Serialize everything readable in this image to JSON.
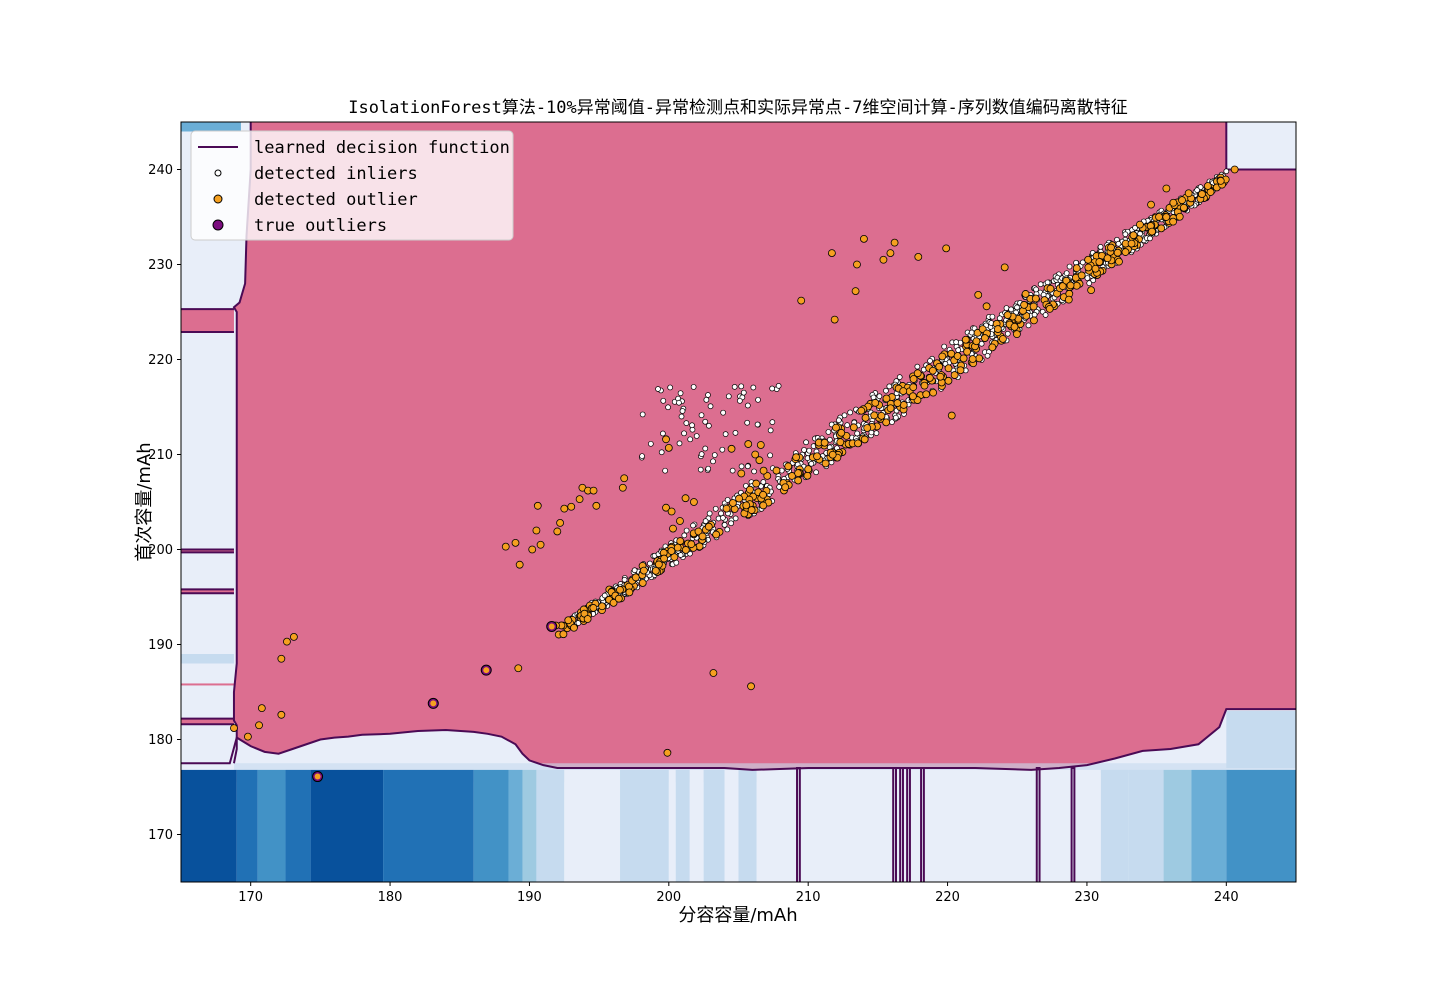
{
  "chart_data": {
    "type": "scatter",
    "title": "IsolationForest算法-10%异常阈值-异常检测点和实际异常点-7维空间计算-序列数值编码离散特征",
    "xlabel": "分容容量/mAh",
    "ylabel": "首次容量/mAh",
    "xlim": [
      165,
      245
    ],
    "ylim": [
      165,
      245
    ],
    "x_ticks": [
      170,
      180,
      190,
      200,
      210,
      220,
      230,
      240
    ],
    "y_ticks": [
      170,
      180,
      190,
      200,
      210,
      220,
      230,
      240
    ],
    "legend_position": "top-left",
    "legend": [
      {
        "name": "learned decision function",
        "marker": "line"
      },
      {
        "name": "detected inliers",
        "marker": "white-dot"
      },
      {
        "name": "detected outlier",
        "marker": "orange-dot"
      },
      {
        "name": "true outliers",
        "marker": "purple-dot"
      }
    ],
    "colors": {
      "inlier_region": "#dc6e90",
      "outlier_shades": [
        "#e8eef9",
        "#c6dbef",
        "#9ecae1",
        "#6baed6",
        "#4292c6",
        "#2171b5",
        "#08519c"
      ],
      "decision_line": "#4b0a55",
      "inlier_marker": "#ffffff",
      "outlier_marker": "#f5a020",
      "true_outlier_marker": "#7b0d7f"
    },
    "boundary_bottom": [
      [
        165,
        177.5
      ],
      [
        168.5,
        177.5
      ],
      [
        169,
        180.2
      ],
      [
        170,
        179.3
      ],
      [
        171,
        178.7
      ],
      [
        172,
        178.5
      ],
      [
        173,
        179
      ],
      [
        174,
        179.5
      ],
      [
        175,
        180
      ],
      [
        176,
        180.2
      ],
      [
        177,
        180.3
      ],
      [
        178,
        180.5
      ],
      [
        180,
        180.6
      ],
      [
        182,
        180.9
      ],
      [
        184,
        181.0
      ],
      [
        186,
        180.8
      ],
      [
        187,
        180.6
      ],
      [
        188,
        180.3
      ],
      [
        189,
        179.5
      ],
      [
        189.5,
        178.5
      ],
      [
        190,
        177.8
      ],
      [
        191,
        177.3
      ],
      [
        192,
        177.0
      ],
      [
        195,
        177.0
      ],
      [
        200,
        177.0
      ],
      [
        204,
        177.0
      ],
      [
        206,
        176.8
      ],
      [
        210,
        177.0
      ],
      [
        215,
        177.0
      ],
      [
        218,
        177.0
      ],
      [
        222,
        177.0
      ],
      [
        226,
        176.8
      ],
      [
        228,
        177.0
      ],
      [
        230,
        177.3
      ],
      [
        232,
        178.0
      ],
      [
        234,
        178.8
      ],
      [
        236,
        179.0
      ],
      [
        238,
        179.5
      ],
      [
        239.5,
        181.3
      ],
      [
        240,
        183.2
      ],
      [
        245,
        183.2
      ]
    ],
    "boundary_left": [
      [
        168.8,
        177.5
      ],
      [
        169,
        179
      ],
      [
        169,
        181.5
      ],
      [
        168.8,
        182
      ],
      [
        168.8,
        185
      ],
      [
        169,
        188
      ],
      [
        169,
        195
      ],
      [
        169,
        196
      ],
      [
        169,
        199.5
      ],
      [
        169,
        210
      ],
      [
        169,
        219
      ],
      [
        169,
        225
      ],
      [
        168.8,
        225.5
      ],
      [
        169.2,
        226
      ],
      [
        169.6,
        228
      ],
      [
        169.7,
        233
      ],
      [
        170,
        240
      ],
      [
        170,
        245
      ]
    ],
    "boundary_topright": [
      [
        240,
        245
      ],
      [
        240,
        240
      ],
      [
        245,
        240
      ]
    ],
    "boundary_spikes": [
      209.3,
      216.2,
      216.7,
      217.2,
      218.2,
      226.5,
      229.0
    ],
    "inlier_band": [
      {
        "x": 193,
        "y": 193
      },
      {
        "x": 196,
        "y": 196
      },
      {
        "x": 200,
        "y": 199
      },
      {
        "x": 205,
        "y": 205
      },
      {
        "x": 210,
        "y": 209
      },
      {
        "x": 215,
        "y": 214
      },
      {
        "x": 220,
        "y": 219
      },
      {
        "x": 225,
        "y": 224
      },
      {
        "x": 230,
        "y": 229
      },
      {
        "x": 235,
        "y": 235
      },
      {
        "x": 240,
        "y": 240
      }
    ],
    "detected_outlier_points": [
      {
        "x": 168.8,
        "y": 181.2
      },
      {
        "x": 169.8,
        "y": 180.3
      },
      {
        "x": 170.6,
        "y": 181.5
      },
      {
        "x": 170.8,
        "y": 183.3
      },
      {
        "x": 172.2,
        "y": 182.6
      },
      {
        "x": 172.2,
        "y": 188.5
      },
      {
        "x": 172.6,
        "y": 190.3
      },
      {
        "x": 173.1,
        "y": 190.8
      },
      {
        "x": 174.8,
        "y": 176.1
      },
      {
        "x": 183.1,
        "y": 183.8
      },
      {
        "x": 186.9,
        "y": 187.3
      },
      {
        "x": 188.3,
        "y": 200.3
      },
      {
        "x": 189.0,
        "y": 200.7
      },
      {
        "x": 189.2,
        "y": 187.5
      },
      {
        "x": 189.3,
        "y": 198.4
      },
      {
        "x": 190.2,
        "y": 200.0
      },
      {
        "x": 190.5,
        "y": 202.0
      },
      {
        "x": 190.6,
        "y": 204.6
      },
      {
        "x": 190.8,
        "y": 200.5
      },
      {
        "x": 191.9,
        "y": 192.0
      },
      {
        "x": 192.0,
        "y": 201.9
      },
      {
        "x": 192.2,
        "y": 202.8
      },
      {
        "x": 192.5,
        "y": 204.3
      },
      {
        "x": 193.0,
        "y": 204.5
      },
      {
        "x": 193.6,
        "y": 205.3
      },
      {
        "x": 193.8,
        "y": 206.5
      },
      {
        "x": 194.2,
        "y": 206.2
      },
      {
        "x": 194.6,
        "y": 206.2
      },
      {
        "x": 194.8,
        "y": 204.6
      },
      {
        "x": 196.8,
        "y": 207.5
      },
      {
        "x": 196.7,
        "y": 206.5
      },
      {
        "x": 199.8,
        "y": 211.6
      },
      {
        "x": 200.0,
        "y": 210.7
      },
      {
        "x": 199.8,
        "y": 204.4
      },
      {
        "x": 200.2,
        "y": 204.0
      },
      {
        "x": 200.8,
        "y": 203.0
      },
      {
        "x": 201.2,
        "y": 205.4
      },
      {
        "x": 201.8,
        "y": 205.0
      },
      {
        "x": 200.3,
        "y": 202.2
      },
      {
        "x": 203.2,
        "y": 187.0
      },
      {
        "x": 204.5,
        "y": 210.6
      },
      {
        "x": 205.2,
        "y": 208.0
      },
      {
        "x": 205.7,
        "y": 211.1
      },
      {
        "x": 206.2,
        "y": 210.0
      },
      {
        "x": 206.5,
        "y": 209.4
      },
      {
        "x": 206.6,
        "y": 211.0
      },
      {
        "x": 206.8,
        "y": 208.3
      },
      {
        "x": 205.9,
        "y": 185.6
      },
      {
        "x": 199.9,
        "y": 178.6
      },
      {
        "x": 209.5,
        "y": 226.2
      },
      {
        "x": 211.7,
        "y": 231.2
      },
      {
        "x": 211.9,
        "y": 224.2
      },
      {
        "x": 213.4,
        "y": 227.2
      },
      {
        "x": 213.5,
        "y": 230.0
      },
      {
        "x": 214.0,
        "y": 232.7
      },
      {
        "x": 215.4,
        "y": 230.5
      },
      {
        "x": 215.9,
        "y": 231.2
      },
      {
        "x": 216.2,
        "y": 232.3
      },
      {
        "x": 217.9,
        "y": 230.8
      },
      {
        "x": 219.9,
        "y": 231.7
      },
      {
        "x": 220.3,
        "y": 214.1
      },
      {
        "x": 222.2,
        "y": 226.8
      },
      {
        "x": 222.8,
        "y": 225.6
      },
      {
        "x": 224.1,
        "y": 229.7
      },
      {
        "x": 225.6,
        "y": 226.9
      },
      {
        "x": 228.7,
        "y": 226.3
      },
      {
        "x": 230.3,
        "y": 227.3
      },
      {
        "x": 232.3,
        "y": 230.3
      },
      {
        "x": 233.2,
        "y": 232.2
      },
      {
        "x": 233.8,
        "y": 234.2
      },
      {
        "x": 234.6,
        "y": 236.3
      },
      {
        "x": 235.7,
        "y": 238.0
      },
      {
        "x": 236.2,
        "y": 236.5
      },
      {
        "x": 237.3,
        "y": 237.5
      },
      {
        "x": 239.6,
        "y": 238.8
      },
      {
        "x": 240.6,
        "y": 240.0
      }
    ],
    "true_outlier_points": [
      {
        "x": 174.8,
        "y": 176.1
      },
      {
        "x": 183.1,
        "y": 183.8
      },
      {
        "x": 186.9,
        "y": 187.3
      },
      {
        "x": 191.6,
        "y": 191.9
      }
    ]
  }
}
